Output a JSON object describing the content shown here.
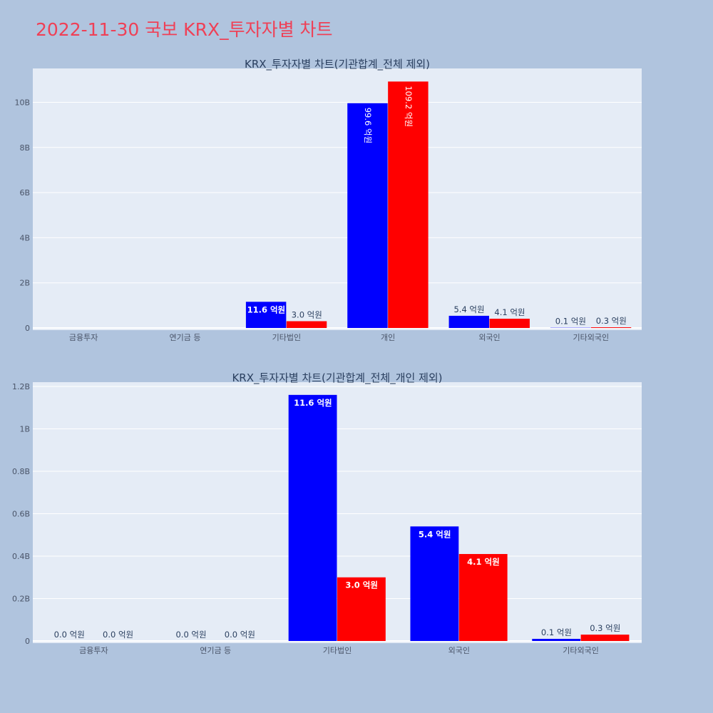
{
  "page_title": "2022-11-30 국보 KRX_투자자별 차트",
  "colors": {
    "series_a": "#0000ff",
    "series_b": "#ff0000",
    "plot_bg": "#e5ecf6",
    "page_bg": "#b0c4de"
  },
  "chart_data": [
    {
      "type": "bar",
      "title": "KRX_투자자별 차트(기관합계_전체 제외)",
      "categories": [
        "금융투자",
        "연기금 등",
        "기타법인",
        "개인",
        "외국인",
        "기타외국인"
      ],
      "series": [
        {
          "values": [
            0,
            0,
            1160000000,
            9960000000,
            540000000,
            10000000
          ],
          "labels": [
            "",
            "",
            "11.6 억원",
            "99.6 억원",
            "5.4 억원",
            "0.1 억원"
          ]
        },
        {
          "values": [
            0,
            0,
            300000000,
            10920000000,
            410000000,
            30000000
          ],
          "labels": [
            "",
            "",
            "3.0 억원",
            "109.2 억원",
            "4.1 억원",
            "0.3 억원"
          ]
        }
      ],
      "yticks": [
        "0",
        "2B",
        "4B",
        "6B",
        "8B",
        "10B"
      ],
      "ytick_values": [
        0,
        2000000000,
        4000000000,
        6000000000,
        8000000000,
        10000000000
      ],
      "ylim": [
        0,
        11500000000
      ],
      "grid": true
    },
    {
      "type": "bar",
      "title": "KRX_투자자별 차트(기관합계_전체_개인 제외)",
      "categories": [
        "금융투자",
        "연기금 등",
        "기타법인",
        "외국인",
        "기타외국인"
      ],
      "series": [
        {
          "values": [
            0,
            0,
            1160000000,
            540000000,
            10000000
          ],
          "labels": [
            "0.0 억원",
            "0.0 억원",
            "11.6 억원",
            "5.4 억원",
            "0.1 억원"
          ]
        },
        {
          "values": [
            0,
            0,
            300000000,
            410000000,
            30000000
          ],
          "labels": [
            "0.0 억원",
            "0.0 억원",
            "3.0 억원",
            "4.1 억원",
            "0.3 억원"
          ]
        }
      ],
      "yticks": [
        "0",
        "0.2B",
        "0.4B",
        "0.6B",
        "0.8B",
        "1B",
        "1.2B"
      ],
      "ytick_values": [
        0,
        200000000,
        400000000,
        600000000,
        800000000,
        1000000000,
        1200000000
      ],
      "ylim": [
        0,
        1220000000
      ],
      "grid": true
    }
  ]
}
